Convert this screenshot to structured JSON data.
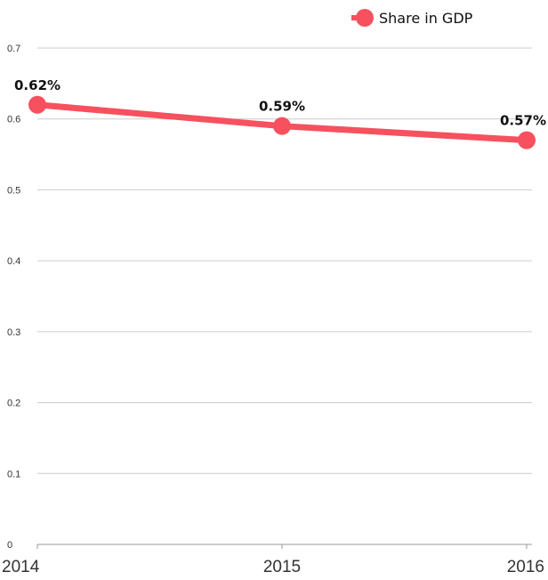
{
  "chart_data": {
    "type": "line",
    "categories": [
      "2014",
      "2015",
      "2016"
    ],
    "series": [
      {
        "name": "Share in GDP",
        "values": [
          0.62,
          0.59,
          0.57
        ],
        "labels": [
          "0.62%",
          "0.59%",
          "0.57%"
        ],
        "color": "#f7505e"
      }
    ],
    "ylim": [
      0,
      0.7
    ],
    "yticks": [
      0,
      0.1,
      0.2,
      0.3,
      0.4,
      0.5,
      0.6,
      0.7
    ],
    "ytick_labels": [
      "0",
      "0.1",
      "0.2",
      "0.3",
      "0.4",
      "0.5",
      "0.6",
      "0.7"
    ],
    "grid": true,
    "legend_position": "top-right",
    "title": "",
    "xlabel": "",
    "ylabel": ""
  },
  "colors": {
    "line": "#f7505e",
    "grid": "#cccccc",
    "axis": "#999999"
  }
}
